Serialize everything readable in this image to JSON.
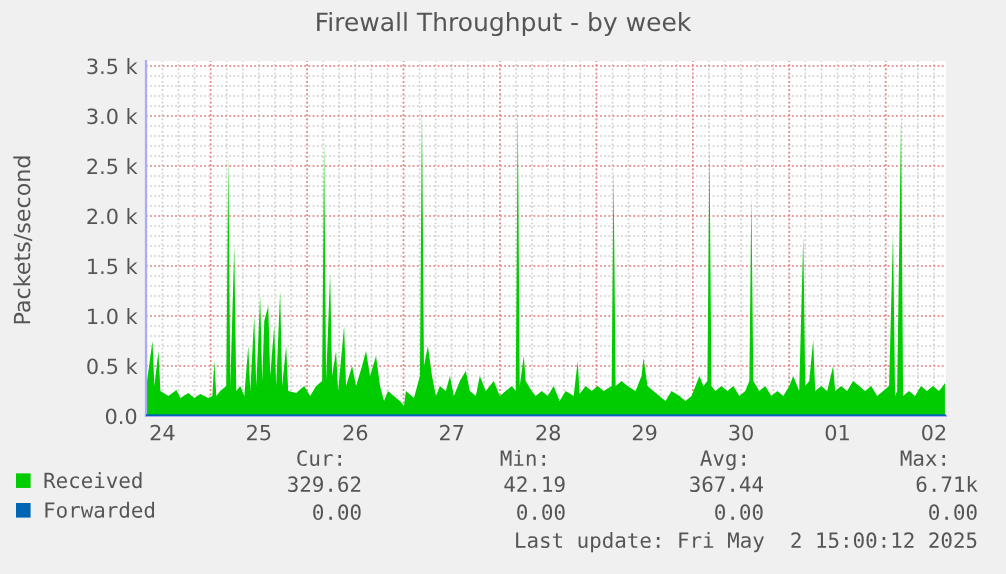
{
  "chart_data": {
    "type": "area",
    "title": "Firewall Throughput - by week",
    "ylabel": "Packets/second",
    "x": [
      "2025-04-24T08:01",
      "2025-04-24T09:01",
      "2025-04-24T09:32",
      "2025-04-24T10:00",
      "2025-04-24T11:01",
      "2025-04-24T11:30",
      "2025-04-24T13:29",
      "2025-04-24T15:29",
      "2025-04-24T16:28",
      "2025-04-24T18:27",
      "2025-04-24T19:57",
      "2025-04-24T21:26",
      "2025-04-24T23:25",
      "2025-04-25T00:26",
      "2025-04-25T00:55",
      "2025-04-25T01:25",
      "2025-04-25T02:24",
      "2025-04-25T03:53",
      "2025-04-25T04:24",
      "2025-04-25T04:54",
      "2025-04-25T05:53",
      "2025-04-25T06:23",
      "2025-04-25T07:22",
      "2025-04-25T08:23",
      "2025-04-25T09:22",
      "2025-04-25T09:52",
      "2025-04-25T10:51",
      "2025-04-25T11:21",
      "2025-04-25T12:20",
      "2025-04-25T12:50",
      "2025-04-25T13:21",
      "2025-04-25T14:20",
      "2025-04-25T14:50",
      "2025-04-25T15:49",
      "2025-04-25T16:19",
      "2025-04-25T17:18",
      "2025-04-25T17:48",
      "2025-04-25T18:48",
      "2025-04-25T19:18",
      "2025-04-25T21:17",
      "2025-04-25T23:17",
      "2025-04-26T00:46",
      "2025-04-26T02:15",
      "2025-04-26T03:45",
      "2025-04-26T04:15",
      "2025-04-26T04:44",
      "2025-04-26T05:44",
      "2025-04-26T06:14",
      "2025-04-26T07:13",
      "2025-04-26T07:44",
      "2025-04-26T09:13",
      "2025-04-26T09:42",
      "2025-04-26T11:12",
      "2025-04-26T12:12",
      "2025-04-26T13:41",
      "2025-04-26T14:40",
      "2025-04-26T15:40",
      "2025-04-26T17:10",
      "2025-04-26T18:09",
      "2025-04-26T19:09",
      "2025-04-26T20:08",
      "2025-04-26T21:37",
      "2025-04-26T23:07",
      "2025-04-27T00:07",
      "2025-04-27T00:36",
      "2025-04-27T02:36",
      "2025-04-27T04:05",
      "2025-04-27T04:35",
      "2025-04-27T05:05",
      "2025-04-27T06:04",
      "2025-04-27T07:05",
      "2025-04-27T08:04",
      "2025-04-27T09:03",
      "2025-04-27T10:32",
      "2025-04-27T11:33",
      "2025-04-27T12:32",
      "2025-04-27T14:01",
      "2025-04-27T15:30",
      "2025-04-27T16:31",
      "2025-04-27T18:00",
      "2025-04-27T18:59",
      "2025-04-27T20:28",
      "2025-04-27T22:28",
      "2025-04-27T23:57",
      "2025-04-28T01:26",
      "2025-04-28T02:57",
      "2025-04-28T03:56",
      "2025-04-28T04:26",
      "2025-04-28T04:55",
      "2025-04-28T05:56",
      "2025-04-28T06:24",
      "2025-04-28T07:55",
      "2025-04-28T08:54",
      "2025-04-28T10:24",
      "2025-04-28T11:53",
      "2025-04-28T13:22",
      "2025-04-28T14:51",
      "2025-04-28T16:21",
      "2025-04-28T18:20",
      "2025-04-28T19:21",
      "2025-04-28T19:49",
      "2025-04-28T21:19",
      "2025-04-28T22:49",
      "2025-04-29T00:19",
      "2025-04-29T01:48",
      "2025-04-29T03:48",
      "2025-04-29T04:16",
      "2025-04-29T04:47",
      "2025-04-29T06:16",
      "2025-04-29T07:45",
      "2025-04-29T09:45",
      "2025-04-29T11:14",
      "2025-04-29T11:44",
      "2025-04-29T12:43",
      "2025-04-29T14:12",
      "2025-04-29T15:42",
      "2025-04-29T17:11",
      "2025-04-29T18:42",
      "2025-04-29T20:40",
      "2025-04-29T22:09",
      "2025-04-29T23:40",
      "2025-04-30T00:39",
      "2025-04-30T01:38",
      "2025-04-30T02:38",
      "2025-04-30T03:37",
      "2025-04-30T04:08",
      "2025-04-30T04:38",
      "2025-04-30T05:37",
      "2025-04-30T07:06",
      "2025-04-30T08:36",
      "2025-04-30T10:05",
      "2025-04-30T11:34",
      "2025-04-30T13:03",
      "2025-04-30T14:04",
      "2025-04-30T14:34",
      "2025-04-30T15:03",
      "2025-04-30T16:32",
      "2025-04-30T18:01",
      "2025-04-30T19:32",
      "2025-04-30T21:01",
      "2025-04-30T22:31",
      "2025-05-01T00:00",
      "2025-05-01T00:59",
      "2025-05-01T02:28",
      "2025-05-01T03:29",
      "2025-05-01T03:58",
      "2025-05-01T04:58",
      "2025-05-01T05:57",
      "2025-05-01T06:27",
      "2025-05-01T07:57",
      "2025-05-01T09:26",
      "2025-05-01T10:55",
      "2025-05-01T11:25",
      "2025-05-01T12:55",
      "2025-05-01T14:24",
      "2025-05-01T15:53",
      "2025-05-01T17:23",
      "2025-05-01T18:52",
      "2025-05-01T20:23",
      "2025-05-01T21:52",
      "2025-05-01T23:21",
      "2025-05-02T00:50",
      "2025-05-02T01:49",
      "2025-05-02T02:20",
      "2025-05-02T02:50",
      "2025-05-02T03:49",
      "2025-05-02T04:19",
      "2025-05-02T05:48",
      "2025-05-02T07:18",
      "2025-05-02T08:47",
      "2025-05-02T10:16",
      "2025-05-02T11:46",
      "2025-05-02T13:15",
      "2025-05-02T14:15",
      "2025-05-02T14:44"
    ],
    "series": [
      {
        "name": "Received",
        "color": "#00cc00",
        "values": [
          300,
          600,
          750,
          300,
          650,
          250,
          200,
          260,
          180,
          230,
          180,
          220,
          180,
          200,
          550,
          200,
          250,
          300,
          2600,
          300,
          1700,
          250,
          300,
          200,
          700,
          250,
          1000,
          300,
          1200,
          350,
          950,
          1100,
          400,
          900,
          300,
          1250,
          300,
          700,
          250,
          230,
          300,
          200,
          300,
          350,
          2760,
          350,
          1420,
          400,
          650,
          250,
          900,
          300,
          500,
          300,
          500,
          650,
          400,
          600,
          300,
          150,
          250,
          200,
          150,
          100,
          250,
          180,
          400,
          3100,
          500,
          700,
          400,
          200,
          300,
          250,
          400,
          200,
          350,
          450,
          250,
          200,
          400,
          250,
          350,
          200,
          250,
          300,
          250,
          3100,
          300,
          600,
          350,
          250,
          200,
          250,
          200,
          300,
          150,
          250,
          200,
          550,
          220,
          300,
          250,
          300,
          250,
          300,
          2460,
          300,
          350,
          300,
          250,
          400,
          580,
          300,
          250,
          200,
          150,
          250,
          200,
          150,
          200,
          300,
          400,
          300,
          350,
          2700,
          300,
          250,
          300,
          250,
          300,
          200,
          250,
          350,
          2200,
          350,
          250,
          300,
          200,
          250,
          200,
          300,
          400,
          250,
          1800,
          300,
          350,
          760,
          250,
          300,
          250,
          500,
          250,
          300,
          250,
          350,
          300,
          250,
          300,
          200,
          250,
          300,
          1820,
          200,
          250,
          2960,
          200,
          250,
          200,
          300,
          250,
          300,
          250,
          300,
          330
        ]
      },
      {
        "name": "Forwarded",
        "color": "#0066b3",
        "type": "line",
        "x": [
          "2025-04-24T08:01",
          "2025-05-02T14:44"
        ],
        "values": [
          0,
          0
        ]
      }
    ],
    "xlim": [
      "2025-04-24T07:55",
      "2025-05-02T15:00"
    ],
    "xticks": [
      {
        "value": "2025-04-24T12:00",
        "label": "24"
      },
      {
        "value": "2025-04-25",
        "label": null
      },
      {
        "value": "2025-04-25T12:00",
        "label": "25"
      },
      {
        "value": "2025-04-26",
        "label": null
      },
      {
        "value": "2025-04-26T12:00",
        "label": "26"
      },
      {
        "value": "2025-04-27",
        "label": null
      },
      {
        "value": "2025-04-27T12:00",
        "label": "27"
      },
      {
        "value": "2025-04-28",
        "label": null
      },
      {
        "value": "2025-04-28T12:00",
        "label": "28"
      },
      {
        "value": "2025-04-29",
        "label": null
      },
      {
        "value": "2025-04-29T12:00",
        "label": "29"
      },
      {
        "value": "2025-04-30",
        "label": null
      },
      {
        "value": "2025-04-30T12:00",
        "label": "30"
      },
      {
        "value": "2025-05-01",
        "label": null
      },
      {
        "value": "2025-05-01T12:00",
        "label": "01"
      },
      {
        "value": "2025-05-02",
        "label": null
      },
      {
        "value": "2025-05-02T12:00",
        "label": "02"
      }
    ],
    "ylim": [
      0,
      3550
    ],
    "yticks": [
      {
        "value": 0,
        "label": "0.0"
      },
      {
        "value": 500,
        "label": "0.5 k"
      },
      {
        "value": 1000,
        "label": "1.0 k"
      },
      {
        "value": 1500,
        "label": "1.5 k"
      },
      {
        "value": 2000,
        "label": "2.0 k"
      },
      {
        "value": 2500,
        "label": "2.5 k"
      },
      {
        "value": 3000,
        "label": "3.0 k"
      },
      {
        "value": 3500,
        "label": "3.5 k"
      }
    ],
    "grid": true,
    "legend": "bottom",
    "annotations": [
      "Cur:",
      "Min:",
      "Avg:",
      "Max:",
      "329.62",
      "42.19",
      "367.44",
      "6.71k",
      "0.00",
      "0.00",
      "0.00",
      "0.00",
      "Last update: Fri May  2 15:00:12 2025"
    ]
  }
}
